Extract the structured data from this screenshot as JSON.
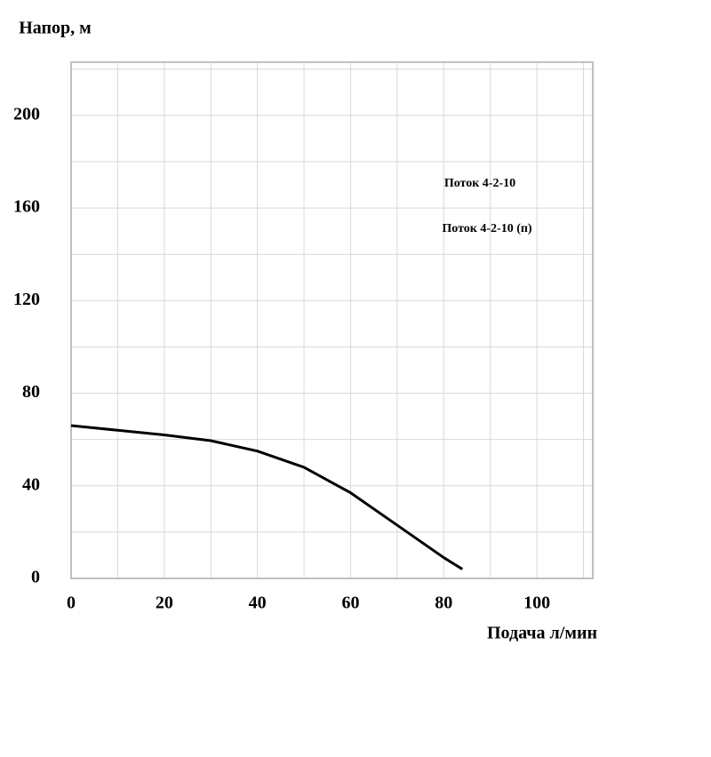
{
  "chart_data": {
    "type": "line",
    "y_label": "Напор, м",
    "x_label": "Подача л/мин",
    "legend": [
      "Поток 4-2-10",
      "Поток 4-2-10 (п)"
    ],
    "x": [
      0,
      10,
      20,
      30,
      40,
      50,
      60,
      70,
      80,
      84
    ],
    "series": [
      {
        "name": "Поток 4-2-10",
        "color": "#000000",
        "values": [
          66,
          64,
          62,
          59.5,
          55,
          48,
          37,
          23,
          9,
          4
        ]
      }
    ],
    "xlim": [
      0,
      112
    ],
    "ylim": [
      0,
      223
    ],
    "xticks": [
      0,
      20,
      40,
      60,
      80,
      100
    ],
    "yticks": [
      0,
      40,
      80,
      120,
      160,
      200
    ],
    "xgrid": [
      10,
      20,
      30,
      40,
      50,
      60,
      70,
      80,
      90,
      100,
      110
    ],
    "ygrid": [
      20,
      40,
      60,
      80,
      100,
      120,
      140,
      160,
      180,
      200,
      220
    ],
    "grid": true
  }
}
